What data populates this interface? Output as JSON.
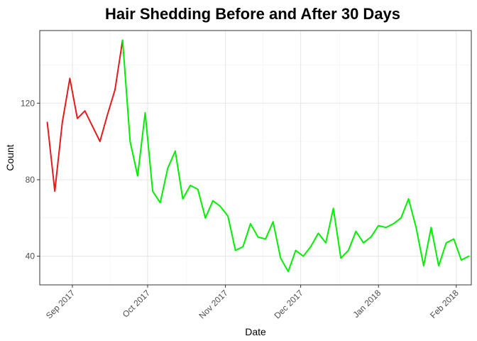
{
  "chart_data": {
    "type": "line",
    "title": "Hair Shedding Before and After 30 Days",
    "xlabel": "Date",
    "ylabel": "Count",
    "x_scale": "date",
    "xlim": [
      "2017-08-19",
      "2018-02-07"
    ],
    "ylim": [
      25,
      158
    ],
    "x_ticks": [
      {
        "date": "2017-09-01",
        "label": "Sep 2017"
      },
      {
        "date": "2017-10-01",
        "label": "Oct 2017"
      },
      {
        "date": "2017-11-01",
        "label": "Nov 2017"
      },
      {
        "date": "2017-12-01",
        "label": "Dec 2017"
      },
      {
        "date": "2018-01-01",
        "label": "Jan 2018"
      },
      {
        "date": "2018-02-01",
        "label": "Feb 2018"
      }
    ],
    "y_ticks": [
      40,
      80,
      120
    ],
    "grid": true,
    "legend": "none",
    "series": [
      {
        "color": "#e41a1c",
        "points": [
          [
            "2017-08-22",
            110
          ],
          [
            "2017-08-25",
            74
          ],
          [
            "2017-08-28",
            110
          ],
          [
            "2017-08-31",
            133
          ],
          [
            "2017-09-03",
            112
          ],
          [
            "2017-09-06",
            116
          ],
          [
            "2017-09-09",
            108
          ],
          [
            "2017-09-12",
            100
          ],
          [
            "2017-09-15",
            114
          ],
          [
            "2017-09-18",
            127
          ],
          [
            "2017-09-21",
            153
          ]
        ]
      },
      {
        "color": "#00ee00",
        "points": [
          [
            "2017-09-21",
            153
          ],
          [
            "2017-09-24",
            100
          ],
          [
            "2017-09-27",
            82
          ],
          [
            "2017-09-30",
            115
          ],
          [
            "2017-10-03",
            74
          ],
          [
            "2017-10-06",
            68
          ],
          [
            "2017-10-09",
            86
          ],
          [
            "2017-10-12",
            95
          ],
          [
            "2017-10-15",
            70
          ],
          [
            "2017-10-18",
            77
          ],
          [
            "2017-10-21",
            75
          ],
          [
            "2017-10-24",
            60
          ],
          [
            "2017-10-27",
            69
          ],
          [
            "2017-10-30",
            66
          ],
          [
            "2017-11-02",
            61
          ],
          [
            "2017-11-05",
            43
          ],
          [
            "2017-11-08",
            45
          ],
          [
            "2017-11-11",
            57
          ],
          [
            "2017-11-14",
            50
          ],
          [
            "2017-11-17",
            49
          ],
          [
            "2017-11-20",
            58
          ],
          [
            "2017-11-23",
            39
          ],
          [
            "2017-11-26",
            32
          ],
          [
            "2017-11-29",
            43
          ],
          [
            "2017-12-02",
            40
          ],
          [
            "2017-12-05",
            45
          ],
          [
            "2017-12-08",
            52
          ],
          [
            "2017-12-11",
            47
          ],
          [
            "2017-12-14",
            65
          ],
          [
            "2017-12-17",
            39
          ],
          [
            "2017-12-20",
            43
          ],
          [
            "2017-12-23",
            53
          ],
          [
            "2017-12-26",
            47
          ],
          [
            "2017-12-29",
            50
          ],
          [
            "2018-01-01",
            56
          ],
          [
            "2018-01-04",
            55
          ],
          [
            "2018-01-07",
            57
          ],
          [
            "2018-01-10",
            60
          ],
          [
            "2018-01-13",
            70
          ],
          [
            "2018-01-16",
            55
          ],
          [
            "2018-01-19",
            35
          ],
          [
            "2018-01-22",
            55
          ],
          [
            "2018-01-25",
            35
          ],
          [
            "2018-01-28",
            47
          ],
          [
            "2018-01-31",
            49
          ],
          [
            "2018-02-03",
            38
          ],
          [
            "2018-02-06",
            40
          ]
        ]
      }
    ]
  }
}
